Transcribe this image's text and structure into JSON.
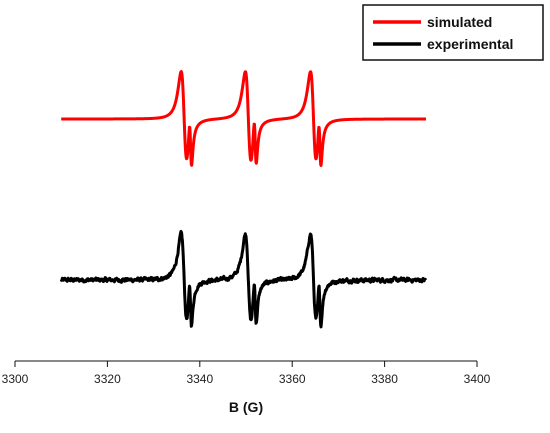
{
  "chart_data": {
    "type": "line",
    "title": "",
    "xlabel": "B (G)",
    "ylabel": "",
    "xlim": [
      3300,
      3400
    ],
    "x_ticks": [
      "3300",
      "3320",
      "3340",
      "3360",
      "3380",
      "3400"
    ],
    "y_axis_visible": false,
    "grid": false,
    "legend_position": "top-right",
    "x_range": [
      3310,
      3389
    ],
    "lines": [
      {
        "center": 3336.6,
        "width": 1.1,
        "amplitude": 1.0
      },
      {
        "center": 3338.0,
        "width": 0.42,
        "amplitude": 0.55
      },
      {
        "center": 3350.5,
        "width": 1.1,
        "amplitude": 1.0
      },
      {
        "center": 3352.0,
        "width": 0.42,
        "amplitude": 0.55
      },
      {
        "center": 3364.6,
        "width": 1.1,
        "amplitude": 1.0
      },
      {
        "center": 3366.0,
        "width": 0.42,
        "amplitude": 0.55
      }
    ],
    "series": [
      {
        "name": "simulated",
        "color": "#ff0000",
        "noise": 0
      },
      {
        "name": "experimental",
        "color": "#000000",
        "noise": 0.045
      }
    ]
  }
}
